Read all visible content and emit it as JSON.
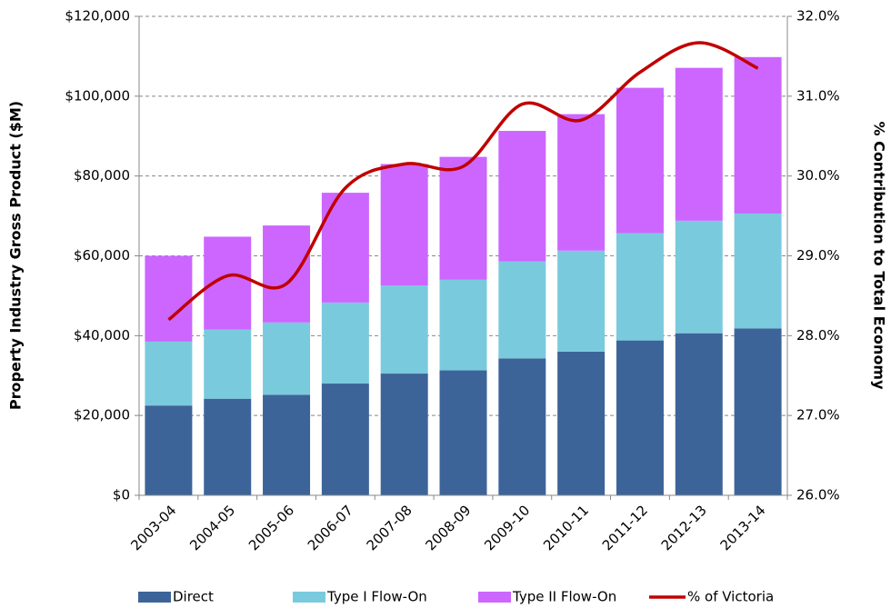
{
  "chart_data": {
    "type": "bar_line",
    "categories": [
      "2003-04",
      "2004-05",
      "2005-06",
      "2006-07",
      "2007-08",
      "2008-09",
      "2009-10",
      "2010-11",
      "2011-12",
      "2012-13",
      "2013-14"
    ],
    "y_label": "Property Industry Gross Product ($M)",
    "y2_label": "% Contribution to Total Economy",
    "ylim": [
      0,
      120000
    ],
    "yticks": [
      {
        "value": 0,
        "label": "$0"
      },
      {
        "value": 20000,
        "label": "$20,000"
      },
      {
        "value": 40000,
        "label": "$40,000"
      },
      {
        "value": 60000,
        "label": "$60,000"
      },
      {
        "value": 80000,
        "label": "$80,000"
      },
      {
        "value": 100000,
        "label": "$100,000"
      },
      {
        "value": 120000,
        "label": "$120,000"
      }
    ],
    "y2lim": [
      26,
      32
    ],
    "y2ticks": [
      {
        "value": 26,
        "label": "26.0%"
      },
      {
        "value": 27,
        "label": "27.0%"
      },
      {
        "value": 28,
        "label": "28.0%"
      },
      {
        "value": 29,
        "label": "29.0%"
      },
      {
        "value": 30,
        "label": "30.0%"
      },
      {
        "value": 31,
        "label": "31.0%"
      },
      {
        "value": 32,
        "label": "32.0%"
      }
    ],
    "grid": true,
    "legend": "bottom",
    "series": [
      {
        "name": "Direct",
        "type": "bar",
        "color": "#3d6499",
        "values": [
          22500,
          24200,
          25200,
          28000,
          30500,
          31300,
          34300,
          36000,
          38800,
          40600,
          41800
        ]
      },
      {
        "name": "Type I Flow-On",
        "type": "bar",
        "color": "#7acadd",
        "values": [
          16000,
          17300,
          18100,
          20300,
          22100,
          22700,
          24300,
          25300,
          26900,
          28200,
          28800
        ]
      },
      {
        "name": "Type II Flow-On",
        "type": "bar",
        "color": "#cc66ff",
        "values": [
          21500,
          23300,
          24300,
          27500,
          30400,
          30800,
          32700,
          34200,
          36400,
          38300,
          39200
        ]
      },
      {
        "name": "% of Victoria",
        "type": "line",
        "axis": "y2",
        "color": "#c00000",
        "values": [
          28.2,
          28.75,
          28.65,
          29.85,
          30.15,
          30.12,
          30.9,
          30.7,
          31.3,
          31.67,
          31.35
        ]
      }
    ]
  }
}
